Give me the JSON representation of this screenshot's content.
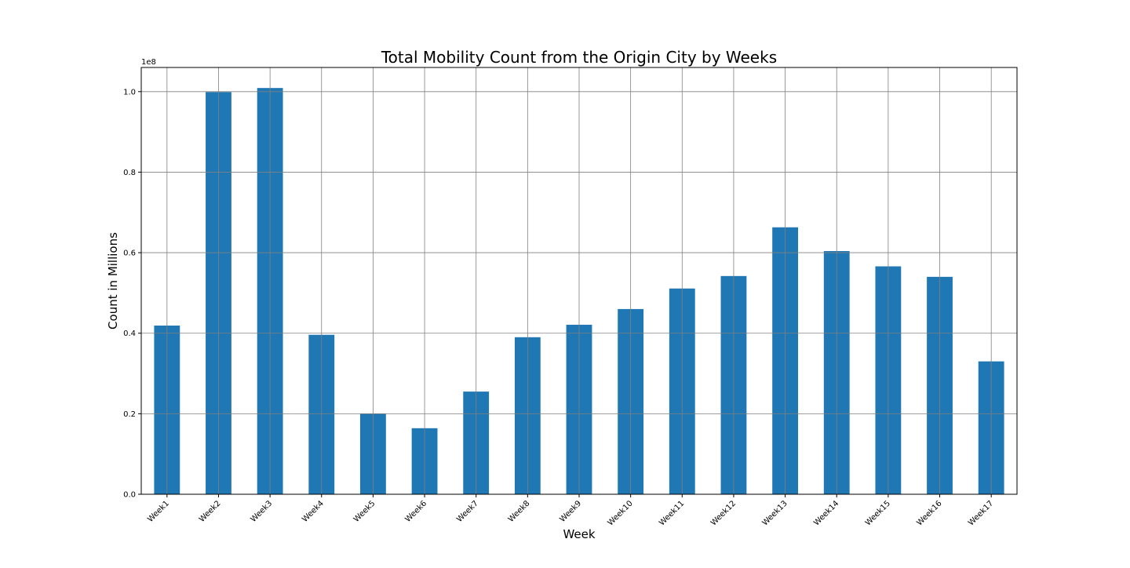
{
  "chart_data": {
    "type": "bar",
    "title": "Total Mobility Count from the Origin City by Weeks",
    "xlabel": "Week",
    "ylabel": "Count in Millions",
    "y_offset_label": "1e8",
    "categories": [
      "Week1",
      "Week2",
      "Week3",
      "Week4",
      "Week5",
      "Week6",
      "Week7",
      "Week8",
      "Week9",
      "Week10",
      "Week11",
      "Week12",
      "Week13",
      "Week14",
      "Week15",
      "Week16",
      "Week17"
    ],
    "values": [
      0.419,
      0.999,
      1.009,
      0.396,
      0.2,
      0.164,
      0.255,
      0.39,
      0.421,
      0.46,
      0.511,
      0.542,
      0.663,
      0.604,
      0.566,
      0.54,
      0.33
    ],
    "value_scale": 100000000,
    "ylim": [
      0,
      1.06
    ],
    "yticks": [
      0.0,
      0.2,
      0.4,
      0.6,
      0.8,
      1.0
    ],
    "ytick_labels": [
      "0.0",
      "0.2",
      "0.4",
      "0.6",
      "0.8",
      "1.0"
    ],
    "grid": true,
    "bar_color": "#1f77b4",
    "grid_color": "#808080"
  }
}
